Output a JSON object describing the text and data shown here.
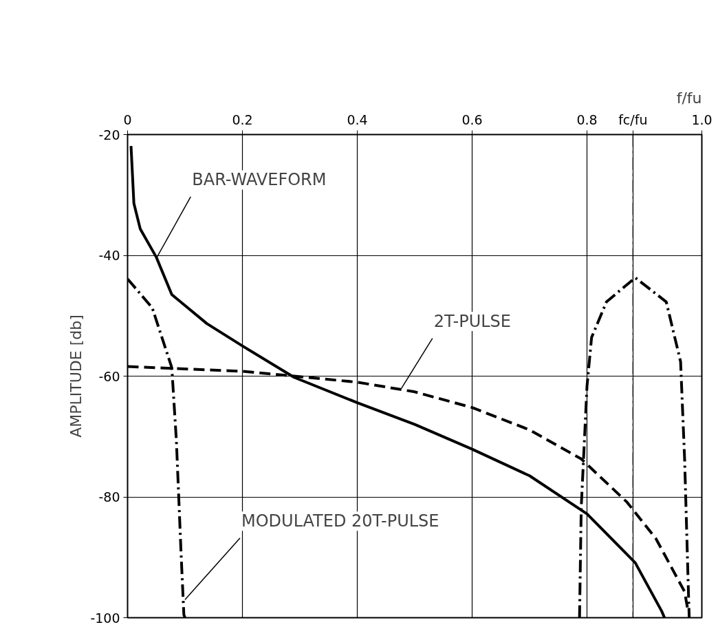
{
  "chart_data": {
    "type": "line",
    "xlabel": "f/fu",
    "ylabel": "AMPLITUDE [db]",
    "xlim": [
      0,
      1
    ],
    "ylim": [
      -100,
      -20
    ],
    "xticks": [
      0,
      0.2,
      0.4,
      0.6,
      0.8,
      {
        "value": 0.88,
        "label": "fc/fu"
      },
      {
        "value": 1,
        "label": "1.0"
      }
    ],
    "yticks": [
      -100,
      -80,
      -60,
      -40,
      -20
    ],
    "grid": true,
    "marker": "none",
    "ref_lines": [
      {
        "axis": "x",
        "value": 0.88,
        "label": null,
        "line_style": "dashdot",
        "color": "#000000"
      }
    ],
    "series": [
      {
        "color": "#000000",
        "line_style": "solid",
        "x": [
          0.006,
          0.011,
          0.022,
          0.05,
          0.077,
          0.138,
          0.2,
          0.29,
          0.4,
          0.5,
          0.6,
          0.7,
          0.8,
          0.884,
          0.93,
          0.935
        ],
        "values": [
          -21.9,
          -31.4,
          -35.6,
          -40.3,
          -46.5,
          -51.3,
          -55.0,
          -60.2,
          -64.4,
          -68,
          -72.1,
          -76.5,
          -82.8,
          -90.9,
          -98.9,
          -100
        ]
      },
      {
        "color": "#000000",
        "line_style": "dashed",
        "x": [
          0,
          0.2,
          0.4,
          0.5,
          0.6,
          0.7,
          0.79,
          0.87,
          0.92,
          0.97,
          0.976
        ],
        "values": [
          -58.4,
          -59.2,
          -61.0,
          -62.6,
          -65.2,
          -68.9,
          -73.7,
          -80.9,
          -86.9,
          -95.7,
          -98.9
        ]
      },
      {
        "color": "#000000",
        "line_style": "dashdot",
        "x": [
          0,
          0.043,
          0.077,
          0.085,
          0.093,
          0.098,
          0.1,
          0.5,
          0.787,
          0.79,
          0.8,
          0.808,
          0.834,
          0.884,
          0.938,
          0.963,
          0.97,
          0.976,
          0.978
        ],
        "values": [
          -43.9,
          -48.7,
          -58.6,
          -70.7,
          -89,
          -99.5,
          -100,
          null,
          -100,
          -81.7,
          -61.7,
          -53.6,
          -47.7,
          -43.7,
          -47.7,
          -57.6,
          -73.7,
          -93.6,
          -100
        ]
      }
    ],
    "annotations": [
      {
        "text": "BAR-WAVEFORM",
        "x": 0.05,
        "y": -40.5
      },
      {
        "text": "2T-PULSE",
        "x": 0.477,
        "y": -62
      },
      {
        "text": "MODULATED 20T-PULSE",
        "x": 0.1,
        "y": -97
      }
    ]
  }
}
